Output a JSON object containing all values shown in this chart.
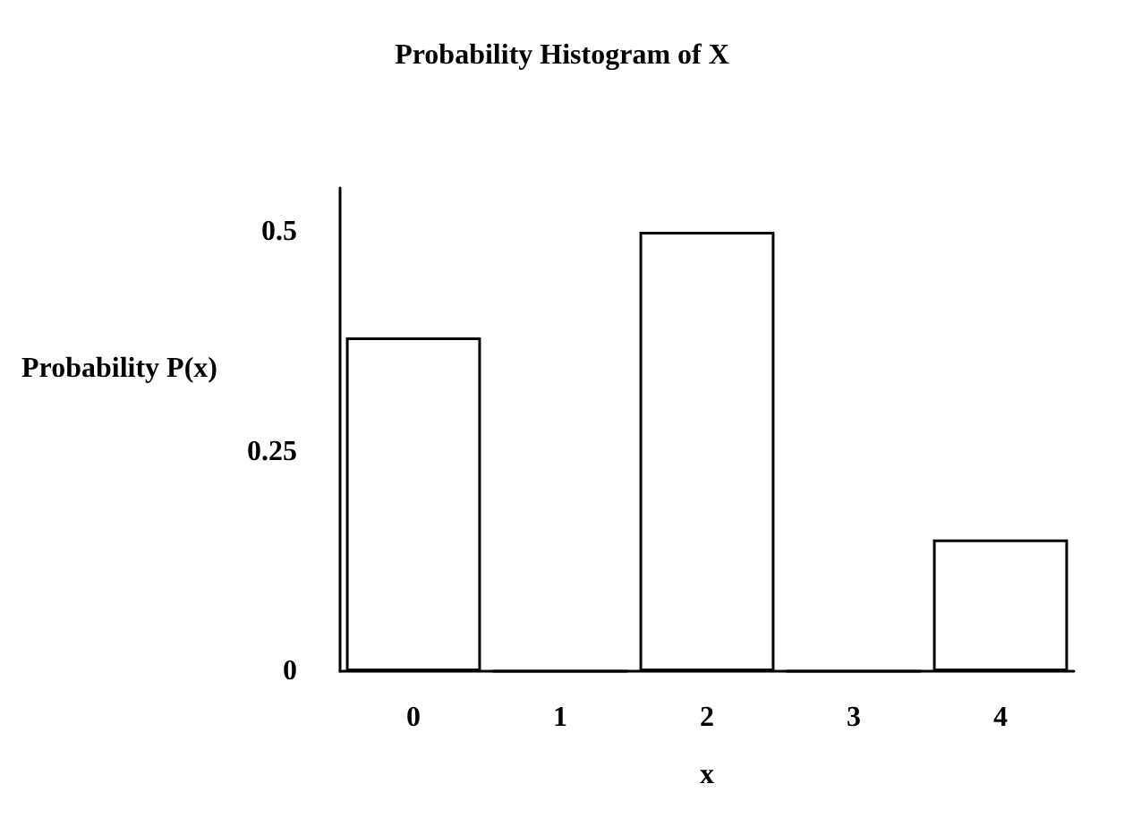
{
  "chart_data": {
    "type": "bar",
    "title": "Probability Histogram of X",
    "xlabel": "x",
    "ylabel": "Probability P(x)",
    "categories": [
      "0",
      "1",
      "2",
      "3",
      "4"
    ],
    "series": [
      {
        "color": "#ffffff",
        "values": [
          0.38,
          0,
          0.5,
          0,
          0.15
        ]
      }
    ],
    "ylim": [
      0,
      0.55
    ],
    "yticks": [
      0,
      0.25,
      0.5
    ]
  }
}
